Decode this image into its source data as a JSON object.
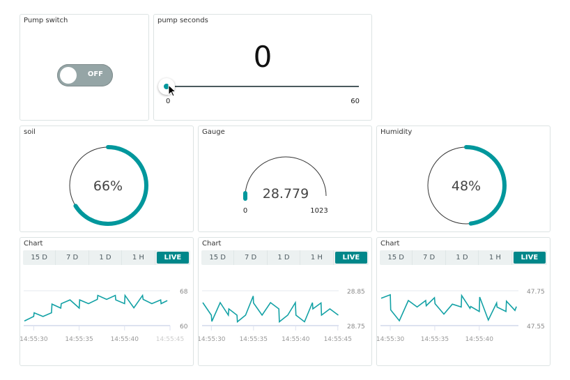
{
  "colors": {
    "accent": "#00979c",
    "tab_active": "#00878a",
    "toggle_off": "#95a5a6"
  },
  "pump_switch": {
    "title": "Pump switch",
    "state": "OFF"
  },
  "pump_seconds": {
    "title": "pump seconds",
    "value": "0",
    "min": "0",
    "max": "60",
    "fraction": 0
  },
  "soil": {
    "title": "soil",
    "value": "66%",
    "percent": 66
  },
  "gauge": {
    "title": "Gauge",
    "value": "28.779",
    "min": "0",
    "max": "1023",
    "numeric": 28.779
  },
  "humidity": {
    "title": "Humidity",
    "value": "48%",
    "percent": 48
  },
  "tabs": [
    "15 D",
    "7 D",
    "1 D",
    "1 H",
    "LIVE"
  ],
  "chart_data": [
    {
      "type": "line",
      "title": "Chart",
      "ylim": [
        60,
        68
      ],
      "yticks": [
        "68",
        "60"
      ],
      "xlim": [
        "14:55:28.9",
        "14:55:45.0"
      ],
      "xticks": [
        "14:55:30",
        "14:55:35",
        "14:55:40",
        "14:55:45"
      ],
      "grid": true,
      "points": [
        [
          "14:55:28.98",
          61.06
        ],
        [
          "14:55:30.00",
          62.09
        ],
        [
          "14:55:30.05",
          62.95
        ],
        [
          "14:55:31.02",
          62.09
        ],
        [
          "14:55:31.96",
          62.95
        ],
        [
          "14:55:32.01",
          64.94
        ],
        [
          "14:55:32.98",
          64.02
        ],
        [
          "14:55:33.03",
          65.04
        ],
        [
          "14:55:34.00",
          65.9
        ],
        [
          "14:55:35.01",
          64.02
        ],
        [
          "14:55:35.06",
          65.9
        ],
        [
          "14:55:36.03",
          65.04
        ],
        [
          "14:55:37.00",
          66.01
        ],
        [
          "14:55:37.05",
          66.92
        ],
        [
          "14:55:38.02",
          66.01
        ],
        [
          "14:55:38.98",
          66.92
        ],
        [
          "14:55:39.03",
          65.9
        ],
        [
          "14:55:40.00",
          65.04
        ],
        [
          "14:55:40.05",
          66.92
        ],
        [
          "14:55:41.02",
          64.08
        ],
        [
          "14:55:41.98",
          66.92
        ],
        [
          "14:55:42.04",
          66.01
        ],
        [
          "14:55:43.00",
          65.04
        ],
        [
          "14:55:43.97",
          65.9
        ],
        [
          "14:55:44.02",
          65.04
        ],
        [
          "14:55:44.70",
          65.74
        ]
      ]
    },
    {
      "type": "line",
      "title": "Chart",
      "ylim": [
        28.75,
        28.85
      ],
      "yticks": [
        "28.85",
        "28.75"
      ],
      "xlim": [
        "14:55:28.9",
        "14:55:45.1"
      ],
      "xticks": [
        "14:55:30",
        "14:55:35",
        "14:55:40",
        "14:55:45"
      ],
      "grid": true,
      "points": [
        [
          "14:55:28.98",
          28.816
        ],
        [
          "14:55:30.00",
          28.78
        ],
        [
          "14:55:30.06",
          28.762
        ],
        [
          "14:55:31.05",
          28.816
        ],
        [
          "14:55:32.02",
          28.78
        ],
        [
          "14:55:32.07",
          28.798
        ],
        [
          "14:55:33.04",
          28.78
        ],
        [
          "14:55:33.09",
          28.761
        ],
        [
          "14:55:34.06",
          28.78
        ],
        [
          "14:55:34.97",
          28.835
        ],
        [
          "14:55:35.00",
          28.815
        ],
        [
          "14:55:36.02",
          28.78
        ],
        [
          "14:55:37.02",
          28.816
        ],
        [
          "14:55:38.01",
          28.798
        ],
        [
          "14:55:38.07",
          28.761
        ],
        [
          "14:55:39.06",
          28.78
        ],
        [
          "14:55:39.97",
          28.816
        ],
        [
          "14:55:40.03",
          28.78
        ],
        [
          "14:55:41.05",
          28.761
        ],
        [
          "14:55:41.99",
          28.816
        ],
        [
          "14:55:42.04",
          28.798
        ],
        [
          "14:55:43.01",
          28.815
        ],
        [
          "14:55:43.07",
          28.78
        ],
        [
          "14:55:44.06",
          28.798
        ],
        [
          "14:55:45.06",
          28.78
        ]
      ]
    },
    {
      "type": "line",
      "title": "Chart",
      "ylim": [
        47.55,
        47.75
      ],
      "yticks": [
        "47.75",
        "47.55"
      ],
      "xlim": [
        "14:55:28.9",
        "14:55:44.4"
      ],
      "xticks": [
        "14:55:30",
        "14:55:35",
        "14:55:40"
      ],
      "grid": true,
      "points": [
        [
          "14:55:28.98",
          47.707
        ],
        [
          "14:55:30.00",
          47.727
        ],
        [
          "14:55:30.05",
          47.64
        ],
        [
          "14:55:31.02",
          47.578
        ],
        [
          "14:55:32.03",
          47.694
        ],
        [
          "14:55:33.02",
          47.657
        ],
        [
          "14:55:33.98",
          47.694
        ],
        [
          "14:55:34.04",
          47.664
        ],
        [
          "14:55:34.97",
          47.71
        ],
        [
          "14:55:35.03",
          47.676
        ],
        [
          "14:55:36.02",
          47.616
        ],
        [
          "14:55:36.98",
          47.673
        ],
        [
          "14:55:37.97",
          47.657
        ],
        [
          "14:55:38.02",
          47.723
        ],
        [
          "14:55:38.96",
          47.649
        ],
        [
          "14:55:39.04",
          47.66
        ],
        [
          "14:55:40.00",
          47.631
        ],
        [
          "14:55:40.05",
          47.714
        ],
        [
          "14:55:41.02",
          47.582
        ],
        [
          "14:55:41.95",
          47.68
        ],
        [
          "14:55:42.00",
          47.657
        ],
        [
          "14:55:43.00",
          47.631
        ],
        [
          "14:55:43.05",
          47.69
        ],
        [
          "14:55:44.01",
          47.637
        ],
        [
          "14:55:44.17",
          47.659
        ]
      ]
    }
  ]
}
